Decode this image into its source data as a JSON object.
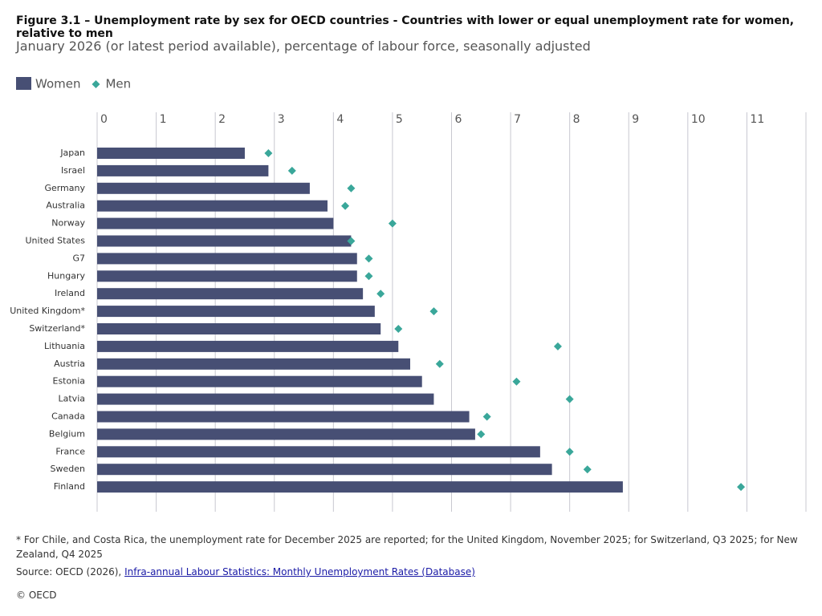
{
  "chart_data": {
    "type": "bar",
    "title": "Figure 3.1 – Unemployment rate by sex for OECD countries - Countries with lower or equal unemployment rate for women, relative to men",
    "subtitle": "January 2026 (or latest period available), percentage of labour force, seasonally adjusted",
    "categories": [
      "Japan",
      "Israel",
      "Germany",
      "Australia",
      "Norway",
      "United States",
      "G7",
      "Hungary",
      "Ireland",
      "United Kingdom*",
      "Switzerland*",
      "Lithuania",
      "Austria",
      "Estonia",
      "Latvia",
      "Canada",
      "Belgium",
      "France",
      "Sweden",
      "Finland"
    ],
    "series": [
      {
        "name": "Women",
        "color": "#474f74",
        "marker": "bar",
        "values": [
          2.5,
          2.9,
          3.6,
          3.9,
          4.0,
          4.3,
          4.4,
          4.4,
          4.5,
          4.7,
          4.8,
          5.1,
          5.3,
          5.5,
          5.7,
          6.3,
          6.4,
          7.5,
          7.7,
          8.9
        ]
      },
      {
        "name": "Men",
        "color": "#3aa79a",
        "marker": "diamond",
        "values": [
          2.9,
          3.3,
          4.3,
          4.2,
          5.0,
          4.3,
          4.6,
          4.6,
          4.8,
          5.7,
          5.1,
          7.8,
          5.8,
          7.1,
          8.0,
          6.6,
          6.5,
          8.0,
          8.3,
          10.9
        ]
      }
    ],
    "xlim": [
      0,
      12
    ],
    "xticks": [
      0,
      1,
      2,
      3,
      4,
      5,
      6,
      7,
      8,
      9,
      10,
      11
    ],
    "grid": true,
    "legend": "top-left",
    "footnote": "* For Chile, and Costa Rica, the unemployment rate for December 2025 are reported; for the United Kingdom, November 2025; for Switzerland, Q3 2025; for New Zealand, Q4 2025",
    "source_prefix": "Source: OECD (2026),",
    "source_link": "Infra-annual Labour Statistics: Monthly Unemployment Rates (Database)",
    "copyright": "© OECD"
  }
}
